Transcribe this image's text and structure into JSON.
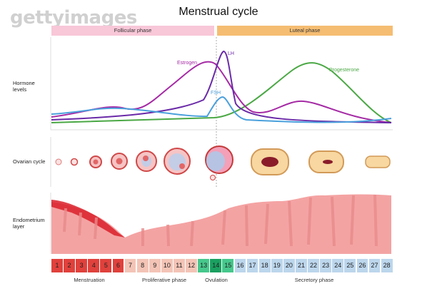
{
  "watermark": "gettyimages",
  "title": "Menstrual cycle",
  "phases": {
    "follicular": "Follicular phase",
    "luteal": "Luteal phase"
  },
  "rows": {
    "hormone": "Hormone\nlevels",
    "ovarian": "Ovarian cycle",
    "endometrium": "Endometrium\nlayer"
  },
  "hormones": {
    "estrogen": "Estrogen",
    "lh": "LH",
    "fsh": "FSH",
    "progesterone": "Progesterone"
  },
  "colors": {
    "estrogen": "#a52aa5",
    "lh": "#6a2aa8",
    "fsh": "#4aa0dc",
    "progesterone": "#4aa844",
    "menstruation": "#e0413c",
    "proliferative": "#f3c4b6",
    "ovulation_light": "#46c88c",
    "ovulation_dark": "#1aa060",
    "secretory": "#bcd6ec",
    "endometrium": "#f4a3a3"
  },
  "days": [
    "1",
    "2",
    "3",
    "4",
    "5",
    "6",
    "7",
    "8",
    "9",
    "10",
    "11",
    "12",
    "13",
    "14",
    "15",
    "16",
    "17",
    "18",
    "19",
    "20",
    "21",
    "22",
    "23",
    "24",
    "25",
    "26",
    "27",
    "28"
  ],
  "sublabels": {
    "menstruation": "Menstruation",
    "proliferative": "Proliferative phase",
    "ovulation": "Ovulation",
    "secretory": "Secretory phase"
  }
}
